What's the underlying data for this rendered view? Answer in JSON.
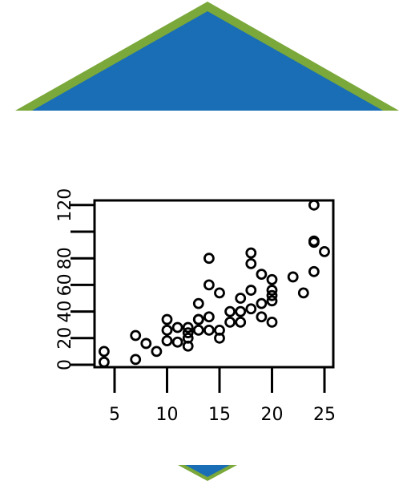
{
  "colors": {
    "triangle_fill": "#1a6eb5",
    "triangle_border": "#7aa83a",
    "background": "#ffffff",
    "ink": "#000000"
  },
  "decorations": {
    "top": "triangle-up",
    "bottom": "triangle-down"
  },
  "chart_data": {
    "type": "scatter",
    "title": "",
    "xlabel": "",
    "ylabel": "",
    "xlim": [
      4,
      25
    ],
    "ylim": [
      0,
      120
    ],
    "xticks": [
      5,
      10,
      15,
      20,
      25
    ],
    "yticks": [
      0,
      20,
      40,
      60,
      80,
      100,
      120
    ],
    "yticks_labeled": [
      0,
      20,
      40,
      60,
      80,
      120
    ],
    "marker": "open-circle",
    "grid": false,
    "x": [
      4,
      4,
      7,
      7,
      8,
      9,
      10,
      10,
      10,
      11,
      11,
      12,
      12,
      12,
      12,
      13,
      13,
      13,
      13,
      14,
      14,
      14,
      14,
      15,
      15,
      15,
      16,
      16,
      17,
      17,
      17,
      18,
      18,
      18,
      18,
      19,
      19,
      19,
      20,
      20,
      20,
      20,
      20,
      22,
      23,
      24,
      24,
      24,
      24,
      25
    ],
    "y": [
      2,
      10,
      4,
      22,
      16,
      10,
      18,
      26,
      34,
      17,
      28,
      14,
      20,
      24,
      28,
      26,
      34,
      34,
      46,
      26,
      36,
      60,
      80,
      20,
      26,
      54,
      32,
      40,
      32,
      40,
      50,
      42,
      56,
      76,
      84,
      36,
      46,
      68,
      32,
      48,
      52,
      56,
      64,
      66,
      54,
      70,
      92,
      93,
      120,
      85
    ]
  }
}
